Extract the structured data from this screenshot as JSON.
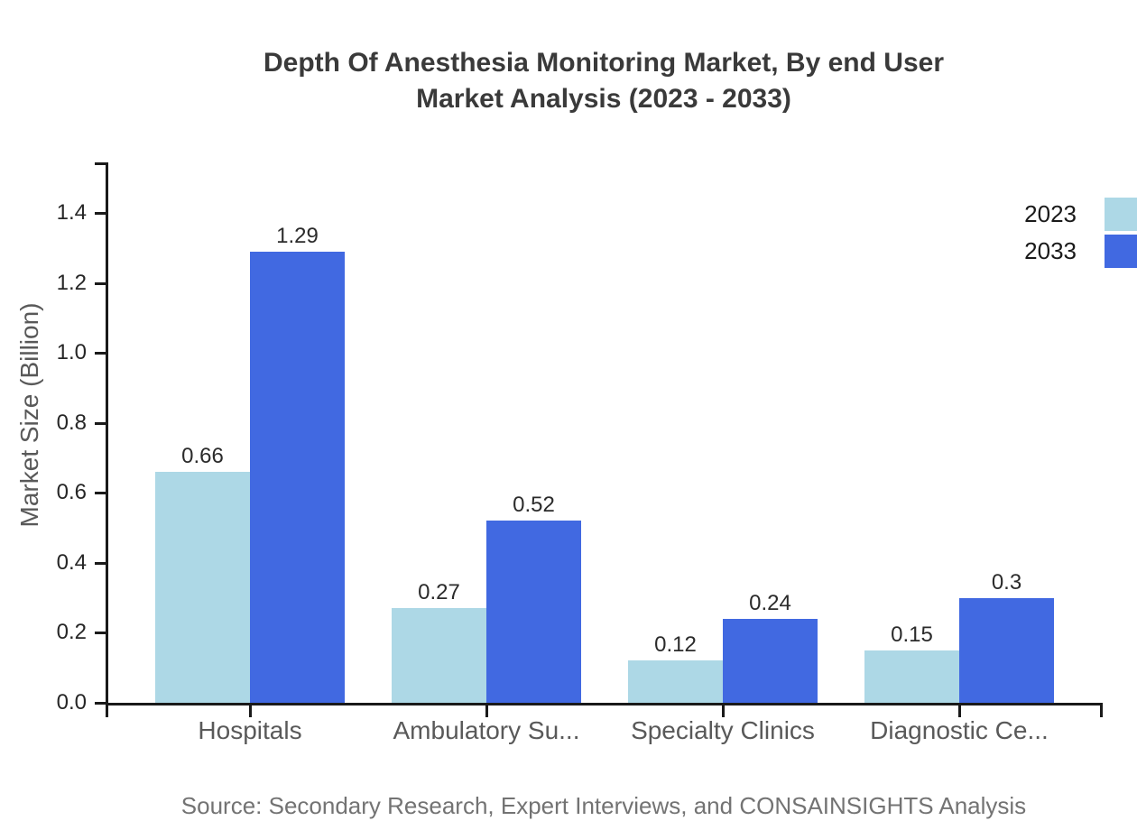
{
  "title": {
    "line1": "Depth Of Anesthesia Monitoring Market, By end User",
    "line2": "Market Analysis (2023 - 2033)"
  },
  "source": "Source: Secondary Research, Expert Interviews, and CONSAINSIGHTS Analysis",
  "chart_data": {
    "type": "bar",
    "title": "Depth Of Anesthesia Monitoring Market, By end User Market Analysis (2023 - 2033)",
    "categories": [
      "Hospitals",
      "Ambulatory Su...",
      "Specialty Clinics",
      "Diagnostic Ce..."
    ],
    "series": [
      {
        "name": "2023",
        "color": "#ADD8E6",
        "values": [
          0.66,
          0.27,
          0.12,
          0.15
        ],
        "labels": [
          "0.66",
          "0.27",
          "0.12",
          "0.15"
        ]
      },
      {
        "name": "2033",
        "color": "#4169E1",
        "values": [
          1.29,
          0.52,
          0.24,
          0.3
        ],
        "labels": [
          "1.29",
          "0.52",
          "0.24",
          "0.3"
        ]
      }
    ],
    "xlabel": "",
    "ylabel": "Market Size (Billion)",
    "ylim": [
      0,
      1.55
    ],
    "yticks": [
      0.0,
      0.2,
      0.4,
      0.6,
      0.8,
      1.0,
      1.2,
      1.4
    ],
    "ytick_labels": [
      "0.0",
      "0.2",
      "0.4",
      "0.6",
      "0.8",
      "1.0",
      "1.2",
      "1.4"
    ],
    "grid": false,
    "legend_position": "upper right",
    "colors": {
      "series_2023": "#ADD8E6",
      "series_2033": "#4169E1",
      "axis": "#1a1a1a"
    }
  }
}
